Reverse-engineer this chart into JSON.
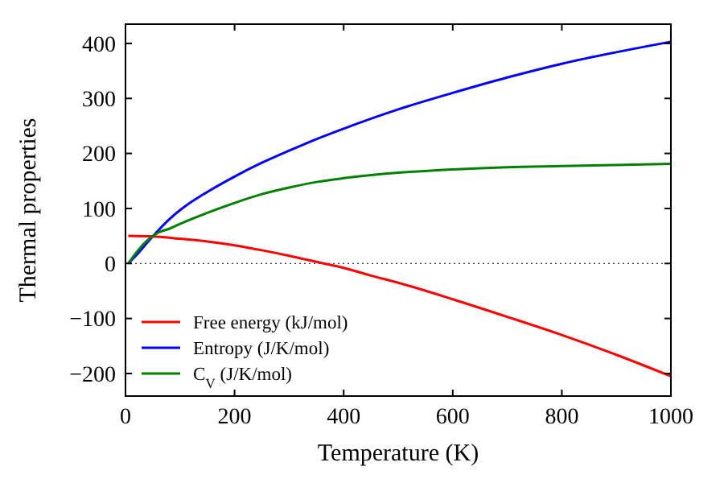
{
  "chart_data": {
    "type": "line",
    "xlabel": "Temperature (K)",
    "ylabel": "Thermal properties",
    "xlim": [
      0,
      1000
    ],
    "ylim": [
      -241,
      435
    ],
    "xticks": [
      0,
      200,
      400,
      600,
      800,
      1000
    ],
    "yticks": [
      -200,
      -100,
      0,
      100,
      200,
      300,
      400
    ],
    "grid": false,
    "legend": "bottom left",
    "marker": "none",
    "line_style": "solid",
    "ref_lines": [
      {
        "axis": "y",
        "value": 0,
        "color": "#000000",
        "line_style": "dotted"
      }
    ],
    "series": [
      {
        "name": "Free energy (kJ/mol)",
        "color": "#ff0000",
        "x": [
          5,
          50,
          100,
          150,
          200,
          250,
          300,
          350,
          400,
          450,
          500,
          600,
          700,
          800,
          900,
          1000
        ],
        "values": [
          50,
          49,
          45,
          40,
          33,
          24,
          14,
          3,
          -8,
          -22,
          -35,
          -65,
          -97,
          -130,
          -166,
          -205
        ]
      },
      {
        "name": "Entropy (J/K/mol)",
        "color": "#0000ff",
        "x": [
          5,
          20,
          40,
          60,
          80,
          100,
          150,
          200,
          250,
          300,
          350,
          400,
          500,
          600,
          700,
          800,
          900,
          1000
        ],
        "values": [
          0,
          15,
          38,
          60,
          80,
          97,
          130,
          158,
          183,
          205,
          226,
          245,
          280,
          310,
          338,
          363,
          384,
          403
        ]
      },
      {
        "name": "C$_{V}$ (J/K/mol)",
        "color": "#008000",
        "x": [
          5,
          20,
          40,
          60,
          80,
          100,
          150,
          200,
          250,
          300,
          350,
          400,
          500,
          600,
          700,
          800,
          900,
          1000
        ],
        "values": [
          0,
          20,
          42,
          56,
          63,
          72,
          92,
          110,
          126,
          138,
          148,
          155,
          165,
          171,
          175,
          177,
          179,
          181
        ]
      }
    ]
  }
}
